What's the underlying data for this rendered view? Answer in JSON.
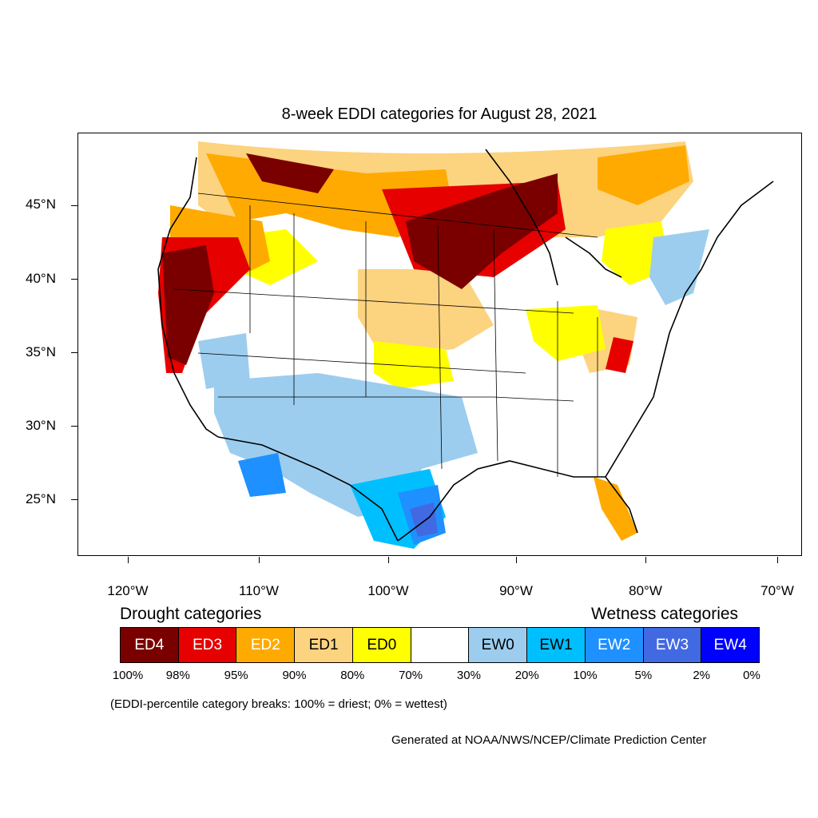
{
  "title": "8-week EDDI categories for August 28, 2021",
  "lat_labels": [
    "45°N",
    "40°N",
    "35°N",
    "30°N",
    "25°N"
  ],
  "lon_labels": [
    "120°W",
    "110°W",
    "100°W",
    "90°W",
    "80°W",
    "70°W"
  ],
  "legend": {
    "drought_heading": "Drought categories",
    "wetness_heading": "Wetness categories",
    "categories": [
      {
        "label": "ED4",
        "color": "#7a0000"
      },
      {
        "label": "ED3",
        "color": "#e60000"
      },
      {
        "label": "ED2",
        "color": "#ffaa00"
      },
      {
        "label": "ED1",
        "color": "#fcd37f"
      },
      {
        "label": "ED0",
        "color": "#ffff00"
      },
      {
        "label": "",
        "color": "#ffffff"
      },
      {
        "label": "EW0",
        "color": "#9ccdee"
      },
      {
        "label": "EW1",
        "color": "#00bfff"
      },
      {
        "label": "EW2",
        "color": "#1e90ff"
      },
      {
        "label": "EW3",
        "color": "#4169e1"
      },
      {
        "label": "EW4",
        "color": "#0000ff"
      }
    ],
    "percentile_breaks": [
      "100%",
      "98%",
      "95%",
      "90%",
      "80%",
      "70%",
      "30%",
      "20%",
      "10%",
      "5%",
      "2%",
      "0%"
    ]
  },
  "note": "(EDDI-percentile category breaks: 100% = driest; 0% = wettest)",
  "credit": "Generated at NOAA/NWS/NCEP/Climate Prediction Center"
}
